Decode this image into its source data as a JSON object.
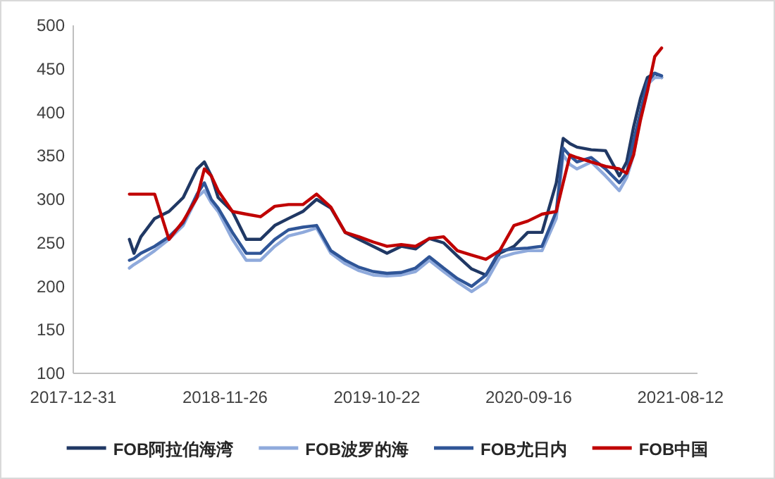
{
  "chart_data": {
    "type": "line",
    "legend": "bottom",
    "grid": false,
    "marker": "none",
    "line_style": "solid",
    "x": [
      "2018-05-02",
      "2018-05-12",
      "2018-05-27",
      "2018-06-26",
      "2018-07-27",
      "2018-08-27",
      "2018-09-26",
      "2018-10-12",
      "2018-10-27",
      "2018-11-11",
      "2018-12-12",
      "2019-01-11",
      "2019-02-11",
      "2019-03-14",
      "2019-04-13",
      "2019-05-14",
      "2019-06-13",
      "2019-07-14",
      "2019-08-14",
      "2019-09-13",
      "2019-10-14",
      "2019-11-13",
      "2019-12-14",
      "2020-01-14",
      "2020-02-13",
      "2020-03-15",
      "2020-04-14",
      "2020-05-15",
      "2020-06-15",
      "2020-07-15",
      "2020-08-15",
      "2020-09-14",
      "2020-10-15",
      "2020-11-15",
      "2020-11-30",
      "2020-12-15",
      "2020-12-30",
      "2021-01-30",
      "2021-03-02",
      "2021-04-01",
      "2021-04-17",
      "2021-05-02",
      "2021-05-17",
      "2021-06-01",
      "2021-06-17",
      "2021-07-02"
    ],
    "series": [
      {
        "name": "FOB阿拉伯海湾",
        "color": "#203864",
        "values": [
          254,
          238,
          257,
          278,
          286,
          302,
          335,
          343,
          327,
          302,
          286,
          254,
          254,
          270,
          278,
          286,
          300,
          290,
          262,
          254,
          246,
          238,
          246,
          243,
          255,
          250,
          235,
          220,
          213,
          238,
          246,
          262,
          262,
          319,
          370,
          364,
          360,
          357,
          356,
          327,
          343,
          383,
          416,
          440,
          445,
          440
        ]
      },
      {
        "name": "FOB波罗的海",
        "color": "#8faadc",
        "values": [
          221,
          225,
          230,
          241,
          254,
          270,
          302,
          310,
          296,
          286,
          254,
          230,
          230,
          246,
          258,
          262,
          267,
          238,
          226,
          218,
          213,
          212,
          213,
          217,
          230,
          217,
          205,
          194,
          205,
          233,
          238,
          241,
          241,
          278,
          351,
          340,
          335,
          343,
          327,
          310,
          325,
          351,
          395,
          432,
          440,
          440
        ]
      },
      {
        "name": "FOB尤日内",
        "color": "#2f5597",
        "values": [
          230,
          232,
          238,
          246,
          257,
          273,
          306,
          319,
          300,
          290,
          262,
          238,
          238,
          254,
          265,
          268,
          270,
          241,
          230,
          222,
          217,
          215,
          216,
          221,
          234,
          221,
          209,
          200,
          213,
          241,
          243,
          244,
          246,
          286,
          359,
          350,
          343,
          348,
          335,
          319,
          330,
          367,
          400,
          435,
          445,
          442
        ]
      },
      {
        "name": "FOB中国",
        "color": "#c00000",
        "values": [
          306,
          306,
          306,
          306,
          254,
          275,
          302,
          335,
          327,
          310,
          286,
          283,
          280,
          292,
          294,
          294,
          306,
          291,
          262,
          257,
          251,
          246,
          248,
          246,
          255,
          257,
          241,
          236,
          231,
          241,
          270,
          275,
          283,
          286,
          319,
          351,
          348,
          343,
          338,
          335,
          330,
          351,
          391,
          424,
          464,
          474
        ]
      }
    ],
    "xlim": [
      "2017-12-31",
      "2021-09-18"
    ],
    "xticks": [
      "2017-12-31",
      "2018-11-26",
      "2019-10-22",
      "2020-09-16",
      "2021-08-12"
    ],
    "ylim": [
      100,
      500
    ],
    "yticks": [
      100,
      150,
      200,
      250,
      300,
      350,
      400,
      450,
      500
    ]
  }
}
